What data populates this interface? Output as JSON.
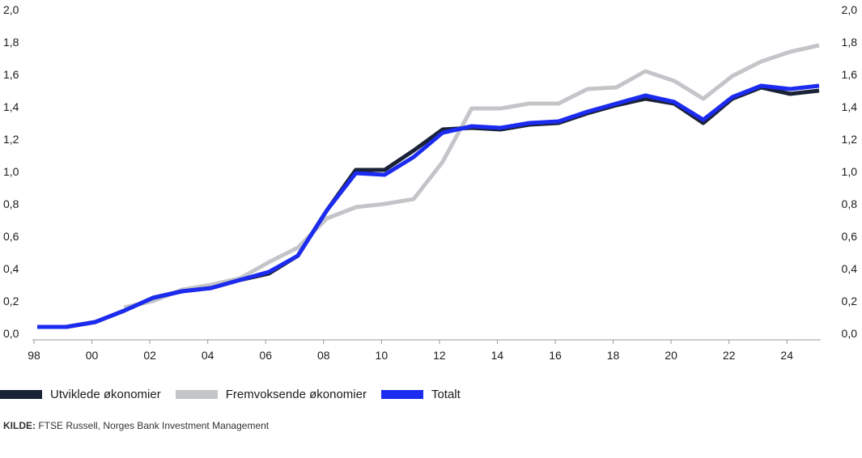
{
  "chart_data": {
    "type": "line",
    "x": [
      1998,
      1999,
      2000,
      2001,
      2002,
      2003,
      2004,
      2005,
      2006,
      2007,
      2008,
      2009,
      2010,
      2011,
      2012,
      2013,
      2014,
      2015,
      2016,
      2017,
      2018,
      2019,
      2020,
      2021,
      2022,
      2023,
      2024,
      2025
    ],
    "x_tick_values": [
      1998,
      2000,
      2002,
      2004,
      2006,
      2008,
      2010,
      2012,
      2014,
      2016,
      2018,
      2020,
      2022,
      2024
    ],
    "x_tick_labels": [
      "98",
      "00",
      "02",
      "04",
      "06",
      "08",
      "10",
      "12",
      "14",
      "16",
      "18",
      "20",
      "22",
      "24"
    ],
    "y_ticks": [
      "0,0",
      "0,2",
      "0,4",
      "0,6",
      "0,8",
      "1,0",
      "1,2",
      "1,4",
      "1,6",
      "1,8",
      "2,0"
    ],
    "ylim": [
      0,
      2.0
    ],
    "xlim": [
      1998,
      2025
    ],
    "grid": false,
    "legend_position": "bottom-left",
    "series": [
      {
        "name": "Fremvoksende økonomier",
        "color": "#c3c5c9",
        "values": [
          null,
          null,
          null,
          0.16,
          0.2,
          0.27,
          0.3,
          0.34,
          0.44,
          0.53,
          0.71,
          0.78,
          0.8,
          0.83,
          1.06,
          1.39,
          1.39,
          1.42,
          1.42,
          1.51,
          1.52,
          1.62,
          1.56,
          1.45,
          1.59,
          1.68,
          1.74,
          1.78
        ]
      },
      {
        "name": "Utviklede økonomier",
        "color": "#1a2238",
        "values": [
          0.04,
          0.04,
          0.07,
          0.14,
          0.22,
          0.26,
          0.28,
          0.33,
          0.37,
          0.48,
          0.76,
          1.01,
          1.01,
          1.13,
          1.26,
          1.27,
          1.26,
          1.29,
          1.3,
          1.36,
          1.41,
          1.45,
          1.42,
          1.3,
          1.45,
          1.52,
          1.48,
          1.5
        ]
      },
      {
        "name": "Totalt",
        "color": "#1c2bf0",
        "values": [
          0.04,
          0.04,
          0.07,
          0.14,
          0.22,
          0.26,
          0.28,
          0.33,
          0.38,
          0.48,
          0.76,
          0.99,
          0.98,
          1.09,
          1.24,
          1.28,
          1.27,
          1.3,
          1.31,
          1.37,
          1.42,
          1.47,
          1.43,
          1.32,
          1.46,
          1.53,
          1.51,
          1.53
        ]
      }
    ],
    "legend": [
      {
        "name": "Utviklede økonomier",
        "color": "#1a2238"
      },
      {
        "name": "Fremvoksende økonomier",
        "color": "#c3c5c9"
      },
      {
        "name": "Totalt",
        "color": "#1c2bf0"
      }
    ]
  },
  "source": {
    "label": "KILDE:",
    "text": " FTSE Russell, Norges Bank Investment Management"
  }
}
